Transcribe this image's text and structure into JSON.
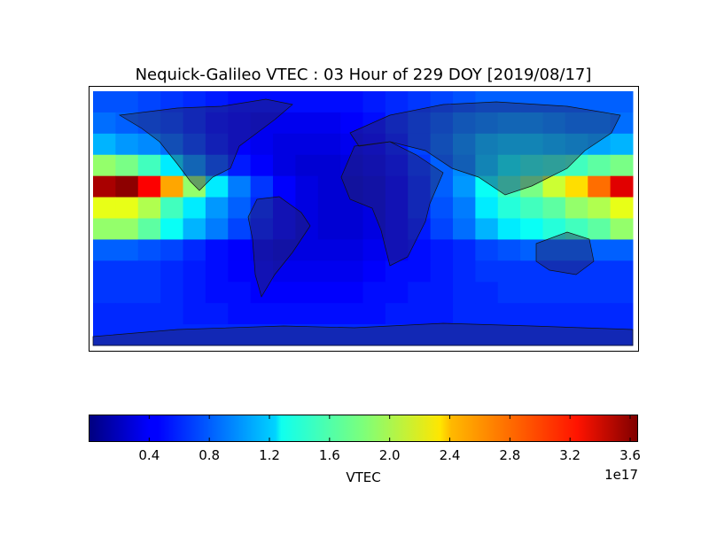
{
  "chart_data": {
    "type": "heatmap",
    "title": "Nequick-Galileo VTEC : 03 Hour of 229 DOY [2019/08/17]",
    "colorbar_label": "VTEC",
    "colorbar_offset": "1e17",
    "clim": [
      0,
      3.65
    ],
    "cticks": [
      0.4,
      0.8,
      1.2,
      1.6,
      {
        "value": 2,
        "label": "2.0"
      },
      2.4,
      2.8,
      3.2,
      3.6
    ],
    "values": [
      [
        0.75,
        0.75,
        0.7,
        0.65,
        0.6,
        0.55,
        0.5,
        0.5,
        0.5,
        0.5,
        0.5,
        0.5,
        0.55,
        0.6,
        0.65,
        0.7,
        0.75,
        0.8,
        0.8,
        0.8,
        0.8,
        0.8,
        0.8,
        0.8
      ],
      [
        0.85,
        0.8,
        0.75,
        0.7,
        0.6,
        0.5,
        0.45,
        0.4,
        0.4,
        0.4,
        0.4,
        0.45,
        0.5,
        0.6,
        0.7,
        0.8,
        0.9,
        0.95,
        1.0,
        1.0,
        0.95,
        0.9,
        0.9,
        0.85
      ],
      [
        1.1,
        1.0,
        0.95,
        0.85,
        0.7,
        0.55,
        0.45,
        0.4,
        0.35,
        0.35,
        0.35,
        0.4,
        0.45,
        0.55,
        0.7,
        0.85,
        1.0,
        1.15,
        1.2,
        1.2,
        1.15,
        1.1,
        1.05,
        1.1
      ],
      [
        1.9,
        1.8,
        1.6,
        1.3,
        1.0,
        0.75,
        0.55,
        0.45,
        0.35,
        0.3,
        0.3,
        0.35,
        0.4,
        0.5,
        0.65,
        0.8,
        0.95,
        1.2,
        1.4,
        1.5,
        1.55,
        1.6,
        1.7,
        1.8
      ],
      [
        3.5,
        3.6,
        3.2,
        2.6,
        1.9,
        1.3,
        0.9,
        0.65,
        0.45,
        0.35,
        0.3,
        0.3,
        0.35,
        0.45,
        0.6,
        0.8,
        1.0,
        1.4,
        1.6,
        1.8,
        2.1,
        2.4,
        2.8,
        3.3
      ],
      [
        2.2,
        2.2,
        2.0,
        1.6,
        1.3,
        1.0,
        0.8,
        0.6,
        0.45,
        0.35,
        0.3,
        0.3,
        0.35,
        0.45,
        0.6,
        0.75,
        0.9,
        1.3,
        1.5,
        1.6,
        1.7,
        1.9,
        2.0,
        2.2
      ],
      [
        1.9,
        1.9,
        1.7,
        1.4,
        1.1,
        0.9,
        0.7,
        0.55,
        0.45,
        0.35,
        0.3,
        0.3,
        0.35,
        0.45,
        0.55,
        0.7,
        0.85,
        1.1,
        1.3,
        1.4,
        1.5,
        1.6,
        1.7,
        1.9
      ],
      [
        0.8,
        0.8,
        0.75,
        0.7,
        0.6,
        0.5,
        0.45,
        0.4,
        0.35,
        0.35,
        0.35,
        0.35,
        0.4,
        0.45,
        0.5,
        0.55,
        0.6,
        0.7,
        0.75,
        0.8,
        0.8,
        0.8,
        0.8,
        0.8
      ],
      [
        0.65,
        0.65,
        0.65,
        0.6,
        0.55,
        0.5,
        0.45,
        0.45,
        0.4,
        0.4,
        0.4,
        0.4,
        0.45,
        0.5,
        0.5,
        0.55,
        0.6,
        0.65,
        0.65,
        0.65,
        0.65,
        0.65,
        0.65,
        0.65
      ],
      [
        0.65,
        0.65,
        0.65,
        0.6,
        0.55,
        0.5,
        0.5,
        0.45,
        0.45,
        0.45,
        0.45,
        0.45,
        0.5,
        0.5,
        0.55,
        0.55,
        0.6,
        0.6,
        0.65,
        0.65,
        0.65,
        0.65,
        0.65,
        0.65
      ],
      [
        0.6,
        0.6,
        0.6,
        0.6,
        0.55,
        0.55,
        0.5,
        0.5,
        0.5,
        0.5,
        0.5,
        0.5,
        0.5,
        0.55,
        0.55,
        0.55,
        0.6,
        0.6,
        0.6,
        0.6,
        0.6,
        0.6,
        0.6,
        0.6
      ],
      [
        0.6,
        0.6,
        0.6,
        0.6,
        0.6,
        0.6,
        0.6,
        0.6,
        0.6,
        0.6,
        0.6,
        0.6,
        0.6,
        0.6,
        0.6,
        0.6,
        0.6,
        0.6,
        0.6,
        0.6,
        0.6,
        0.6,
        0.6,
        0.6
      ]
    ]
  }
}
